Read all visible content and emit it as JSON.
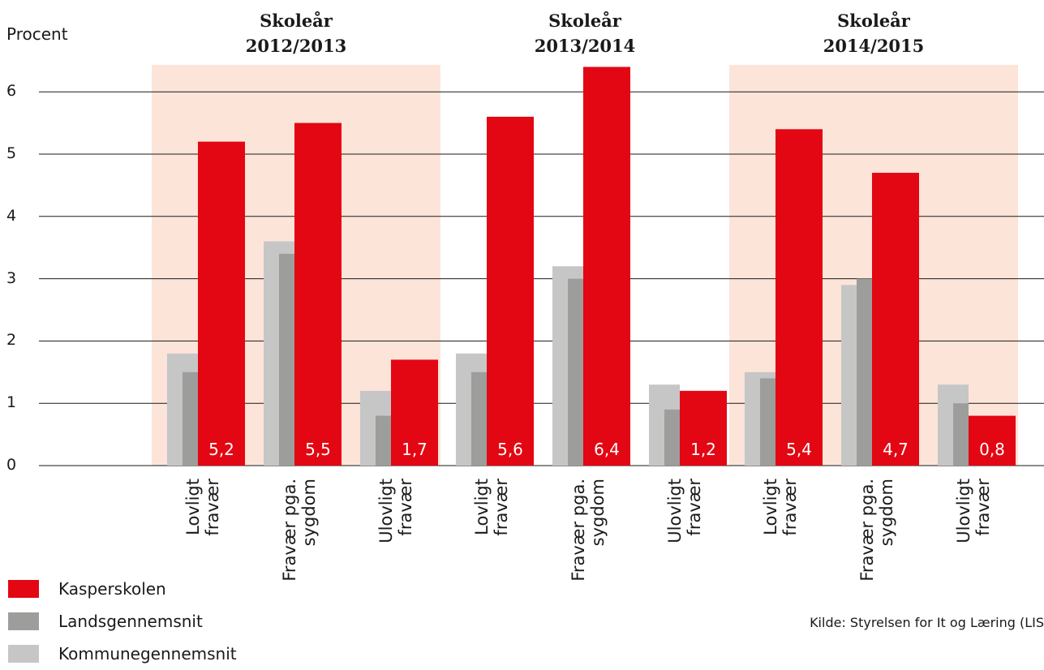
{
  "chart_data": {
    "type": "bar",
    "ylabel": "Procent",
    "ylim": [
      0,
      6.4
    ],
    "yticks": [
      "0",
      "1",
      "2",
      "3",
      "4",
      "5",
      "6"
    ],
    "grid": true,
    "groups": [
      {
        "title_line1": "Skoleår",
        "title_line2": "2012/2013",
        "shaded": true,
        "categories": [
          {
            "label_line1": "Lovligt",
            "label_line2": "fravær",
            "kommune": 1.8,
            "lands": 1.5,
            "kasper": 5.2,
            "kasper_label": "5,2"
          },
          {
            "label_line1": "Fravær pga.",
            "label_line2": "sygdom",
            "kommune": 3.6,
            "lands": 3.4,
            "kasper": 5.5,
            "kasper_label": "5,5"
          },
          {
            "label_line1": "Ulovligt",
            "label_line2": "fravær",
            "kommune": 1.2,
            "lands": 0.8,
            "kasper": 1.7,
            "kasper_label": "1,7"
          }
        ]
      },
      {
        "title_line1": "Skoleår",
        "title_line2": "2013/2014",
        "shaded": false,
        "categories": [
          {
            "label_line1": "Lovligt",
            "label_line2": "fravær",
            "kommune": 1.8,
            "lands": 1.5,
            "kasper": 5.6,
            "kasper_label": "5,6"
          },
          {
            "label_line1": "Fravær pga.",
            "label_line2": "sygdom",
            "kommune": 3.2,
            "lands": 3.0,
            "kasper": 6.4,
            "kasper_label": "6,4"
          },
          {
            "label_line1": "Ulovligt",
            "label_line2": "fravær",
            "kommune": 1.3,
            "lands": 0.9,
            "kasper": 1.2,
            "kasper_label": "1,2"
          }
        ]
      },
      {
        "title_line1": "Skoleår",
        "title_line2": "2014/2015",
        "shaded": true,
        "categories": [
          {
            "label_line1": "Lovligt",
            "label_line2": "fravær",
            "kommune": 1.5,
            "lands": 1.4,
            "kasper": 5.4,
            "kasper_label": "5,4"
          },
          {
            "label_line1": "Fravær pga.",
            "label_line2": "sygdom",
            "kommune": 2.9,
            "lands": 3.0,
            "kasper": 4.7,
            "kasper_label": "4,7"
          },
          {
            "label_line1": "Ulovligt",
            "label_line2": "fravær",
            "kommune": 1.3,
            "lands": 1.0,
            "kasper": 0.8,
            "kasper_label": "0,8"
          }
        ]
      }
    ],
    "legend": [
      {
        "name": "Kasperskolen",
        "color": "#e30613"
      },
      {
        "name": "Landsgennemsnit",
        "color": "#9d9d9c"
      },
      {
        "name": "Kommunegennemsnit",
        "color": "#c6c6c6"
      }
    ],
    "source": "Kilde: Styrelsen for It og Læring (LIS"
  },
  "colors": {
    "kasper": "#e30613",
    "lands": "#9d9d9c",
    "kommune": "#c6c6c6",
    "shade": "#fce4d9",
    "grid": "#1a1a1a"
  }
}
